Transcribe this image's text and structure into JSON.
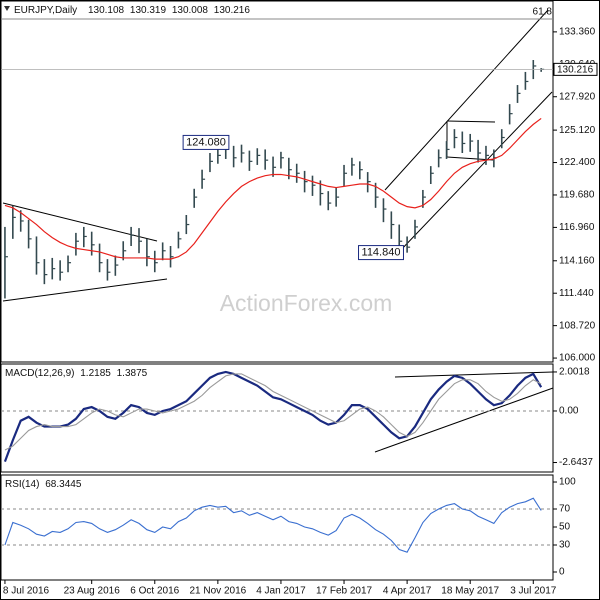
{
  "chart_data": [
    {
      "type": "ohlc",
      "title": "EURJPY,Daily",
      "last_open": 130.108,
      "bar_color": "#33494f",
      "categories": [
        "8 Jul 2016",
        null,
        null,
        null,
        null,
        null,
        null,
        null,
        null,
        null,
        null,
        "23 Aug 2016",
        null,
        null,
        null,
        null,
        null,
        null,
        null,
        "6 Oct 2016",
        null,
        null,
        null,
        null,
        null,
        null,
        null,
        "21 Nov 2016",
        null,
        null,
        null,
        null,
        null,
        null,
        null,
        "4 Jan 2017",
        null,
        null,
        null,
        null,
        null,
        null,
        null,
        "17 Feb 2017",
        null,
        null,
        null,
        null,
        null,
        null,
        null,
        "4 Apr 2017",
        null,
        null,
        null,
        null,
        null,
        null,
        null,
        "18 May 2017",
        null,
        null,
        null,
        null,
        null,
        null,
        null,
        "3 Jul 2017",
        null
      ],
      "high": [
        117.0,
        118.8,
        118.4,
        117.6,
        116.2,
        114.3,
        114.4,
        114.2,
        114.6,
        116.5,
        117.0,
        116.6,
        115.6,
        114.3,
        114.6,
        115.8,
        117.0,
        116.9,
        116.0,
        115.0,
        115.7,
        115.4,
        116.6,
        118.0,
        120.2,
        121.8,
        123.2,
        123.8,
        124.08,
        123.8,
        123.9,
        123.4,
        123.6,
        123.5,
        122.9,
        123.3,
        122.8,
        122.3,
        121.7,
        121.3,
        120.9,
        120.0,
        120.3,
        122.2,
        122.8,
        122.5,
        121.6,
        120.7,
        119.4,
        118.3,
        117.2,
        116.2,
        117.6,
        120.1,
        122.1,
        123.5,
        124.2,
        125.2,
        125.0,
        124.8,
        124.3,
        123.8,
        123.5,
        125.2,
        127.3,
        128.9,
        130.0,
        131.0,
        130.319
      ],
      "low": [
        111.0,
        116.0,
        116.6,
        115.2,
        113.0,
        112.2,
        112.6,
        112.5,
        113.2,
        114.6,
        115.3,
        114.6,
        113.2,
        112.5,
        112.9,
        114.2,
        115.4,
        114.8,
        113.7,
        113.2,
        114.2,
        113.6,
        115.2,
        116.4,
        118.6,
        120.2,
        121.6,
        122.3,
        122.7,
        122.0,
        122.4,
        121.7,
        122.2,
        121.8,
        121.2,
        121.9,
        121.0,
        120.7,
        119.9,
        119.6,
        118.8,
        118.4,
        118.7,
        120.4,
        121.3,
        121.0,
        119.9,
        118.6,
        117.4,
        116.0,
        115.0,
        114.84,
        116.0,
        118.6,
        120.6,
        122.0,
        122.7,
        123.6,
        123.2,
        123.3,
        122.4,
        122.2,
        122.0,
        123.6,
        125.6,
        127.4,
        128.5,
        129.4,
        130.008
      ],
      "close": [
        114.5,
        117.8,
        117.5,
        116.0,
        114.0,
        113.0,
        113.5,
        113.2,
        114.0,
        115.8,
        116.2,
        115.5,
        114.0,
        113.2,
        113.8,
        115.0,
        116.3,
        115.8,
        114.5,
        114.0,
        115.0,
        114.5,
        116.0,
        117.2,
        119.5,
        121.0,
        122.5,
        123.0,
        123.5,
        122.8,
        123.2,
        122.5,
        123.0,
        122.6,
        122.0,
        122.8,
        121.8,
        121.5,
        120.8,
        120.5,
        119.8,
        119.0,
        119.5,
        121.5,
        122.2,
        121.8,
        120.8,
        119.5,
        118.5,
        117.2,
        115.8,
        115.3,
        117.0,
        119.5,
        121.5,
        122.8,
        123.5,
        124.5,
        124.0,
        124.2,
        123.2,
        123.0,
        122.8,
        124.5,
        126.5,
        128.2,
        129.2,
        130.5,
        130.216
      ],
      "moving_average": {
        "color": "#e8211c",
        "values": [
          118.8,
          118.6,
          118.2,
          117.7,
          117.2,
          116.6,
          116.1,
          115.7,
          115.4,
          115.2,
          115.1,
          115.0,
          114.9,
          114.7,
          114.5,
          114.4,
          114.4,
          114.4,
          114.4,
          114.3,
          114.3,
          114.3,
          114.5,
          114.9,
          115.6,
          116.5,
          117.4,
          118.3,
          119.1,
          119.8,
          120.4,
          120.8,
          121.1,
          121.3,
          121.4,
          121.4,
          121.3,
          121.2,
          121.0,
          120.8,
          120.6,
          120.4,
          120.3,
          120.4,
          120.5,
          120.6,
          120.6,
          120.4,
          120.0,
          119.5,
          119.0,
          118.7,
          118.6,
          118.8,
          119.3,
          120.0,
          120.8,
          121.5,
          122.0,
          122.3,
          122.5,
          122.6,
          122.7,
          123.0,
          123.6,
          124.3,
          125.0,
          125.6,
          126.1
        ]
      },
      "ylim": [
        105.67,
        135.95
      ],
      "yticks": [
        {
          "value": 133.36,
          "label": "133.360"
        },
        {
          "value": 130.64,
          "label": "130.640"
        },
        {
          "value": 127.92,
          "label": "127.920"
        },
        {
          "value": 125.12,
          "label": "125.120"
        },
        {
          "value": 122.4,
          "label": "122.400"
        },
        {
          "value": 119.68,
          "label": "119.680"
        },
        {
          "value": 116.96,
          "label": "116.960"
        },
        {
          "value": 114.16,
          "label": "114.160"
        },
        {
          "value": 111.44,
          "label": "111.440"
        },
        {
          "value": 108.72,
          "label": "108.720"
        },
        {
          "value": 106,
          "label": "106.000"
        }
      ],
      "annotations": [
        {
          "value": 124.08,
          "label": "124.080"
        },
        {
          "value": 114.84,
          "label": "114.840"
        }
      ],
      "fibonacci_label": "61.8",
      "watermark": "ActionForex.com"
    },
    {
      "type": "line",
      "title": "MACD(12,26,9)",
      "series": [
        {
          "color": "#1a2a80",
          "values": [
            -2.6,
            -1.5,
            -0.5,
            -0.3,
            -0.6,
            -0.8,
            -0.8,
            -0.8,
            -0.7,
            -0.4,
            0.1,
            0.2,
            0.0,
            -0.3,
            -0.4,
            -0.1,
            0.3,
            0.2,
            -0.1,
            -0.2,
            0.0,
            0.1,
            0.3,
            0.5,
            0.9,
            1.3,
            1.7,
            1.9,
            2.0,
            1.9,
            1.7,
            1.5,
            1.3,
            1.0,
            0.7,
            0.6,
            0.4,
            0.2,
            0.0,
            -0.2,
            -0.5,
            -0.7,
            -0.6,
            -0.2,
            0.3,
            0.3,
            0.1,
            -0.3,
            -0.7,
            -1.1,
            -1.4,
            -1.3,
            -0.8,
            -0.1,
            0.6,
            1.1,
            1.5,
            1.8,
            1.7,
            1.4,
            1.0,
            0.6,
            0.3,
            0.4,
            0.8,
            1.3,
            1.7,
            1.9,
            1.2185
          ]
        },
        {
          "color": "#9a9a9a",
          "values": [
            -2.0,
            -1.8,
            -1.4,
            -1.0,
            -0.8,
            -0.7,
            -0.8,
            -0.8,
            -0.8,
            -0.7,
            -0.4,
            -0.1,
            0.1,
            0.0,
            -0.2,
            -0.3,
            -0.1,
            0.1,
            0.1,
            0.0,
            -0.1,
            0.0,
            0.1,
            0.3,
            0.5,
            0.8,
            1.2,
            1.5,
            1.8,
            1.9,
            1.9,
            1.7,
            1.5,
            1.3,
            1.0,
            0.8,
            0.6,
            0.4,
            0.2,
            0.0,
            -0.2,
            -0.4,
            -0.6,
            -0.5,
            -0.2,
            0.1,
            0.2,
            0.0,
            -0.3,
            -0.7,
            -1.1,
            -1.3,
            -1.1,
            -0.6,
            0.0,
            0.6,
            1.0,
            1.4,
            1.6,
            1.6,
            1.4,
            1.0,
            0.7,
            0.5,
            0.6,
            0.9,
            1.3,
            1.6,
            1.3875
          ]
        }
      ],
      "ylim": [
        -3.13,
        2.41
      ],
      "yticks": [
        2.0018,
        {
          "value": 0,
          "label": "0.00"
        },
        -2.6437
      ],
      "dashed_levels": [
        0
      ]
    },
    {
      "type": "line",
      "title": "RSI(14)",
      "series": [
        {
          "color": "#3a6fd0",
          "values": [
            30,
            55,
            52,
            48,
            42,
            40,
            45,
            44,
            48,
            55,
            56,
            54,
            48,
            44,
            47,
            52,
            58,
            54,
            47,
            44,
            50,
            48,
            56,
            60,
            68,
            72,
            74,
            72,
            73,
            66,
            68,
            63,
            66,
            62,
            58,
            62,
            56,
            54,
            50,
            48,
            44,
            41,
            46,
            60,
            64,
            60,
            54,
            47,
            42,
            35,
            25,
            22,
            38,
            55,
            65,
            70,
            74,
            76,
            70,
            68,
            62,
            58,
            54,
            66,
            72,
            76,
            78,
            82,
            68.3445
          ]
        }
      ],
      "ylim": [
        -8.9,
        107.8
      ],
      "yticks": [
        100,
        70,
        50,
        30,
        0
      ],
      "dashed_levels": [
        70,
        30
      ]
    }
  ]
}
